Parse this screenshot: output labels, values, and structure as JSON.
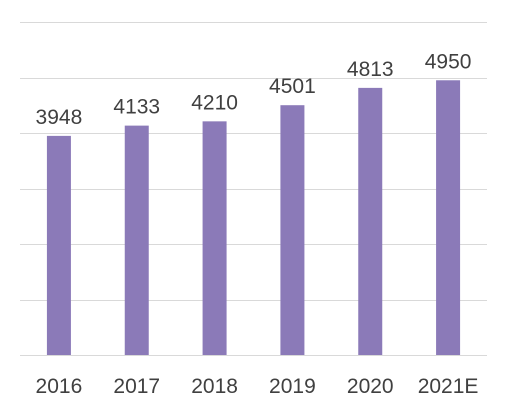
{
  "chart_data": {
    "type": "bar",
    "categories": [
      "2016",
      "2017",
      "2018",
      "2019",
      "2020",
      "2021E"
    ],
    "series": [
      {
        "values": [
          3948,
          4133,
          4210,
          4501,
          4813,
          4950
        ]
      }
    ],
    "data_labels": [
      "3948",
      "4133",
      "4210",
      "4501",
      "4813",
      "4950"
    ],
    "ylim": [
      0,
      6000
    ],
    "y_gridline_step": 1000,
    "grid": true,
    "y_tick_labels_visible": false,
    "legend": "none",
    "bar_color": "#8B7AB8",
    "gridline_color": "#D9D9D9",
    "label_color": "#404040"
  }
}
